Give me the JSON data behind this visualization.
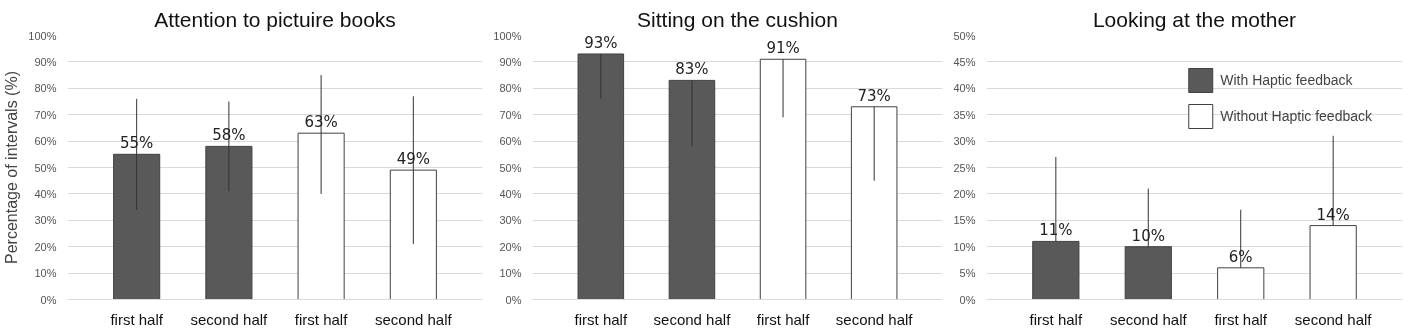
{
  "chart_data": [
    {
      "type": "bar",
      "title": "Attention to pictuire books",
      "ylabel": "Percentage of intervals (%)",
      "categories": [
        "first half",
        "second half",
        "first half",
        "second half"
      ],
      "ylim": [
        0,
        100
      ],
      "yticks": [
        {
          "value": 0,
          "label": "0%"
        },
        {
          "value": 10,
          "label": "10%"
        },
        {
          "value": 20,
          "label": "20%"
        },
        {
          "value": 30,
          "label": "30%"
        },
        {
          "value": 40,
          "label": "40%"
        },
        {
          "value": 50,
          "label": "50%"
        },
        {
          "value": 60,
          "label": "60%"
        },
        {
          "value": 70,
          "label": "70%"
        },
        {
          "value": 80,
          "label": "80%"
        },
        {
          "value": 90,
          "label": "90%"
        },
        {
          "value": 100,
          "label": "100%"
        }
      ],
      "grid": "y",
      "legend": false,
      "series": [
        {
          "color": "#595959",
          "values": [
            55,
            58,
            null,
            null
          ],
          "errors": [
            [
              34,
              76
            ],
            [
              41,
              75
            ],
            null,
            null
          ],
          "value_labels": [
            "55%",
            "58%",
            null,
            null
          ]
        },
        {
          "color": "#ffffff",
          "values": [
            null,
            null,
            63,
            49
          ],
          "errors": [
            null,
            null,
            [
              40,
              85
            ],
            [
              21,
              77
            ]
          ],
          "value_labels": [
            null,
            null,
            "63%",
            "49%"
          ]
        }
      ]
    },
    {
      "type": "bar",
      "title": "Sitting on the cushion",
      "categories": [
        "first half",
        "second half",
        "first half",
        "second half"
      ],
      "ylim": [
        0,
        100
      ],
      "yticks": [
        {
          "value": 0,
          "label": "0%"
        },
        {
          "value": 10,
          "label": "10%"
        },
        {
          "value": 20,
          "label": "20%"
        },
        {
          "value": 30,
          "label": "30%"
        },
        {
          "value": 40,
          "label": "40%"
        },
        {
          "value": 50,
          "label": "50%"
        },
        {
          "value": 60,
          "label": "60%"
        },
        {
          "value": 70,
          "label": "70%"
        },
        {
          "value": 80,
          "label": "80%"
        },
        {
          "value": 90,
          "label": "90%"
        },
        {
          "value": 100,
          "label": "100%"
        }
      ],
      "grid": "y",
      "legend": false,
      "series": [
        {
          "color": "#595959",
          "values": [
            93,
            83,
            null,
            null
          ],
          "errors": [
            [
              76,
              93
            ],
            [
              58,
              83
            ],
            null,
            null
          ],
          "value_labels": [
            "93%",
            "83%",
            null,
            null
          ]
        },
        {
          "color": "#ffffff",
          "values": [
            null,
            null,
            91,
            73
          ],
          "errors": [
            null,
            null,
            [
              69,
              91
            ],
            [
              45,
              73
            ]
          ],
          "value_labels": [
            null,
            null,
            "91%",
            "73%"
          ]
        }
      ]
    },
    {
      "type": "bar",
      "title": "Looking at the mother",
      "categories": [
        "first half",
        "second half",
        "first half",
        "second half"
      ],
      "ylim": [
        0,
        50
      ],
      "yticks": [
        {
          "value": 0,
          "label": "0%"
        },
        {
          "value": 5,
          "label": "5%"
        },
        {
          "value": 10,
          "label": "10%"
        },
        {
          "value": 15,
          "label": "15%"
        },
        {
          "value": 20,
          "label": "20%"
        },
        {
          "value": 25,
          "label": "25%"
        },
        {
          "value": 30,
          "label": "30%"
        },
        {
          "value": 35,
          "label": "35%"
        },
        {
          "value": 40,
          "label": "40%"
        },
        {
          "value": 45,
          "label": "45%"
        },
        {
          "value": 50,
          "label": "50%"
        }
      ],
      "grid": "y",
      "legend": "top right",
      "series": [
        {
          "name": "With Haptic feedback",
          "color": "#595959",
          "values": [
            11,
            10,
            null,
            null
          ],
          "errors": [
            [
              11,
              27
            ],
            [
              10,
              21
            ],
            null,
            null
          ],
          "value_labels": [
            "11%",
            "10%",
            null,
            null
          ]
        },
        {
          "name": "Without Haptic feedback",
          "color": "#ffffff",
          "values": [
            null,
            null,
            6,
            14
          ],
          "errors": [
            null,
            null,
            [
              6,
              17
            ],
            [
              14,
              31
            ]
          ],
          "value_labels": [
            null,
            null,
            "6%",
            "14%"
          ]
        }
      ]
    }
  ]
}
